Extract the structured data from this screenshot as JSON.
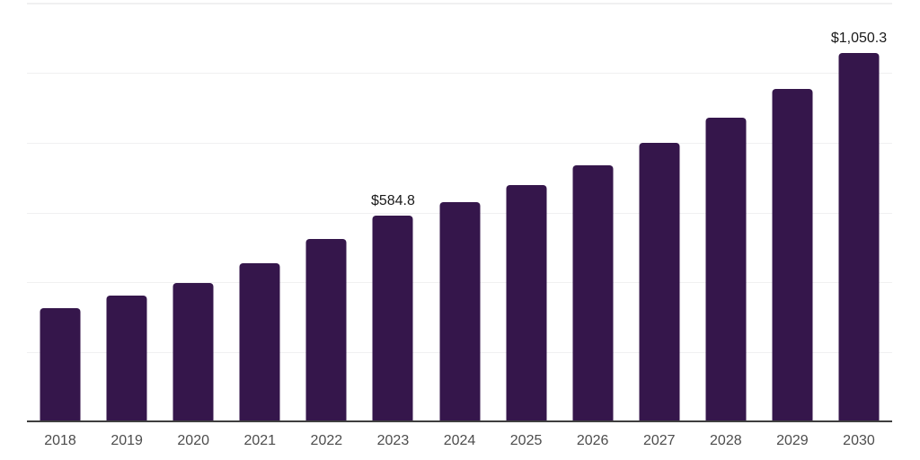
{
  "chart_data": {
    "type": "bar",
    "title": "",
    "xlabel": "",
    "ylabel": "",
    "categories": [
      "2018",
      "2019",
      "2020",
      "2021",
      "2022",
      "2023",
      "2024",
      "2025",
      "2026",
      "2027",
      "2028",
      "2029",
      "2030"
    ],
    "values": [
      321,
      356,
      392,
      450,
      518,
      584.8,
      625,
      673,
      731,
      795,
      867,
      947,
      1050.3
    ],
    "labeled_points": [
      {
        "category": "2023",
        "label": "$584.8"
      },
      {
        "category": "2030",
        "label": "$1,050.3"
      }
    ],
    "ylim": [
      0,
      1200
    ],
    "gridline_step": 200,
    "grid": true,
    "y_tick_labels_shown": false,
    "legend_position": "none",
    "colors": {
      "bar": "#35164b",
      "gridline": "#f0f0f1",
      "axis_line": "#3f3f3f",
      "tick_label": "#4d4d4d",
      "data_label": "#1a1a1a",
      "background": "#ffffff"
    }
  }
}
